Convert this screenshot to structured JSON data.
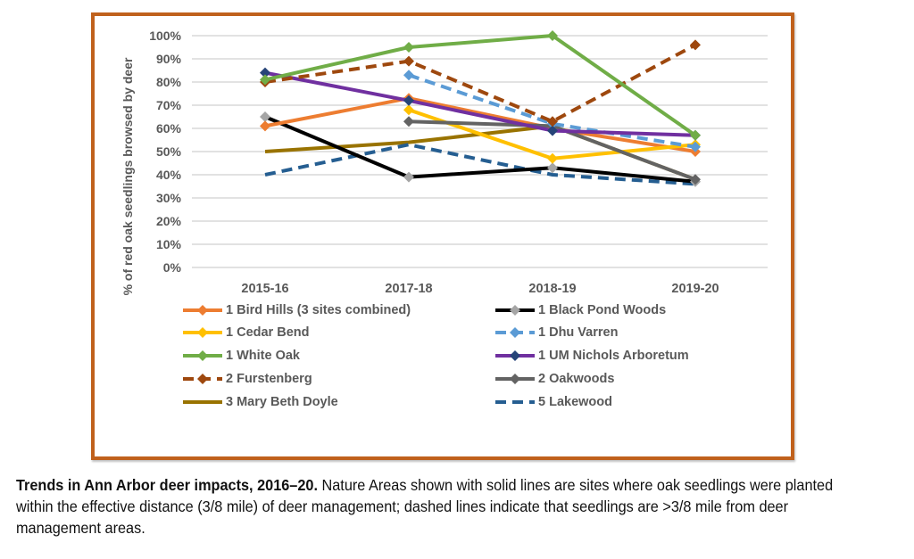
{
  "chart_data": {
    "type": "line",
    "title": "",
    "xlabel": "",
    "ylabel": "% of red oak seedlings browsed by deer",
    "ylim": [
      0,
      100
    ],
    "yticks": [
      "0%",
      "10%",
      "20%",
      "30%",
      "40%",
      "50%",
      "60%",
      "70%",
      "80%",
      "90%",
      "100%"
    ],
    "categories": [
      "2015-16",
      "2017-18",
      "2018-19",
      "2019-20"
    ],
    "grid": true,
    "legend_position": "bottom",
    "series": [
      {
        "name": "1 Bird Hills (3 sites combined)",
        "color": "#ed7d31",
        "dashed": false,
        "values": [
          61,
          73,
          60,
          50
        ]
      },
      {
        "name": "1 Black Pond Woods",
        "color": "#000000",
        "marker_color": "#a5a5a5",
        "dashed": false,
        "values": [
          65,
          39,
          43,
          37
        ]
      },
      {
        "name": "1 Cedar Bend",
        "color": "#ffc000",
        "dashed": false,
        "values": [
          null,
          68,
          47,
          53
        ]
      },
      {
        "name": "1 Dhu Varren",
        "color": "#5b9bd5",
        "dashed": true,
        "values": [
          null,
          83,
          62,
          52
        ]
      },
      {
        "name": "1 White Oak",
        "color": "#70ad47",
        "dashed": false,
        "values": [
          81,
          95,
          100,
          57
        ]
      },
      {
        "name": "1 UM Nichols Arboretum",
        "color": "#7030a0",
        "marker_color": "#264478",
        "dashed": false,
        "values": [
          84,
          72,
          59,
          57
        ]
      },
      {
        "name": "2 Furstenberg",
        "color": "#9e480e",
        "dashed": true,
        "values": [
          80,
          89,
          63,
          96
        ]
      },
      {
        "name": "2 Oakwoods",
        "color": "#636363",
        "dashed": false,
        "values": [
          null,
          63,
          61,
          38
        ]
      },
      {
        "name": "3 Mary Beth Doyle",
        "color": "#997300",
        "dashed": false,
        "marker": false,
        "values": [
          50,
          54,
          61,
          38
        ]
      },
      {
        "name": "5 Lakewood",
        "color": "#255e91",
        "dashed": true,
        "marker": false,
        "values": [
          40,
          53,
          40,
          36
        ]
      }
    ]
  },
  "caption": {
    "bold": "Trends in Ann Arbor deer impacts, 2016–20.",
    "text": " Nature Areas shown with solid lines are sites where oak seedlings were planted within the effective distance (3/8 mile) of deer management; dashed lines indicate that seedlings are >3/8 mile from deer management areas."
  },
  "colors": {
    "frame_border": "#c0611c",
    "gridline": "#d9d9d9",
    "axis_text": "#595959"
  }
}
